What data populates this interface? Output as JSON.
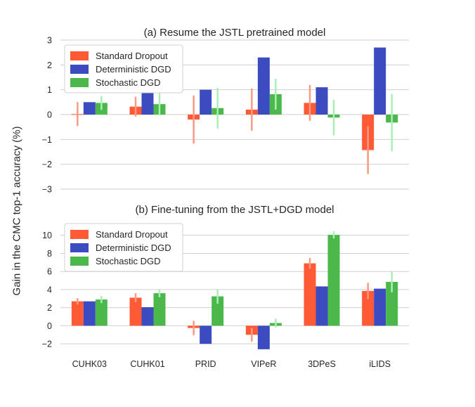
{
  "ylabel": "Gain in the CMC top-1 accuracy (%)",
  "colors": {
    "standard": "#ff5a36",
    "deterministic": "#3b4cc0",
    "stochastic": "#4cb84c",
    "err_standard": "#ff9a82",
    "err_deterministic": "#3b4cc0",
    "err_stochastic": "#a8f0b4",
    "grid": "#cfcfcf"
  },
  "chart_data": [
    {
      "type": "bar",
      "title": "(a) Resume the JSTL pretrained model",
      "xlabel": "",
      "ylabel": "Gain in the CMC top-1 accuracy (%)",
      "categories": [
        "CUHK03",
        "CUHK01",
        "PRID",
        "VIPeR",
        "3DPeS",
        "iLIDS"
      ],
      "ylim": [
        -3,
        3
      ],
      "yticks": [
        "−3",
        "−2",
        "−1",
        "0",
        "1",
        "2",
        "3"
      ],
      "ytick_values": [
        -3,
        -2,
        -1,
        0,
        1,
        2,
        3
      ],
      "grid": true,
      "show_xticklabels": false,
      "legend_position": "top-left",
      "series": [
        {
          "name": "Standard Dropout",
          "color_key": "standard",
          "values": [
            0.02,
            0.32,
            -0.2,
            0.2,
            0.47,
            -1.43
          ],
          "err": [
            0.48,
            0.4,
            0.97,
            0.85,
            0.72,
            0.96
          ]
        },
        {
          "name": "Deterministic DGD",
          "color_key": "deterministic",
          "values": [
            0.5,
            0.88,
            1.0,
            2.3,
            1.1,
            2.7
          ],
          "err": [
            0,
            0,
            0,
            0,
            0,
            0
          ]
        },
        {
          "name": "Stochastic DGD",
          "color_key": "stochastic",
          "values": [
            0.47,
            0.42,
            0.26,
            0.82,
            -0.12,
            -0.32
          ],
          "err": [
            0.28,
            0.45,
            0.82,
            0.62,
            0.72,
            1.15
          ]
        }
      ]
    },
    {
      "type": "bar",
      "title": "(b) Fine-tuning from the JSTL+DGD model",
      "xlabel": "",
      "ylabel": "Gain in the CMC top-1 accuracy (%)",
      "categories": [
        "CUHK03",
        "CUHK01",
        "PRID",
        "VIPeR",
        "3DPeS",
        "iLIDS"
      ],
      "ylim": [
        -3,
        12
      ],
      "yticks": [
        "−2",
        "0",
        "2",
        "4",
        "6",
        "8",
        "10"
      ],
      "ytick_values": [
        -2,
        0,
        2,
        4,
        6,
        8,
        10
      ],
      "grid": true,
      "show_xticklabels": true,
      "legend_position": "top-left",
      "series": [
        {
          "name": "Standard Dropout",
          "color_key": "standard",
          "values": [
            2.7,
            3.1,
            -0.25,
            -1.0,
            6.9,
            3.85
          ],
          "err": [
            0.35,
            0.5,
            0.8,
            0.75,
            0.6,
            0.9
          ]
        },
        {
          "name": "Deterministic DGD",
          "color_key": "deterministic",
          "values": [
            2.7,
            2.05,
            -2.0,
            -2.6,
            4.35,
            4.1
          ],
          "err": [
            0,
            0,
            0,
            0,
            0,
            0
          ]
        },
        {
          "name": "Stochastic DGD",
          "color_key": "stochastic",
          "values": [
            2.9,
            3.6,
            3.25,
            0.3,
            10.05,
            4.85
          ],
          "err": [
            0.4,
            0.45,
            0.8,
            0.5,
            0.4,
            1.15
          ]
        }
      ]
    }
  ]
}
